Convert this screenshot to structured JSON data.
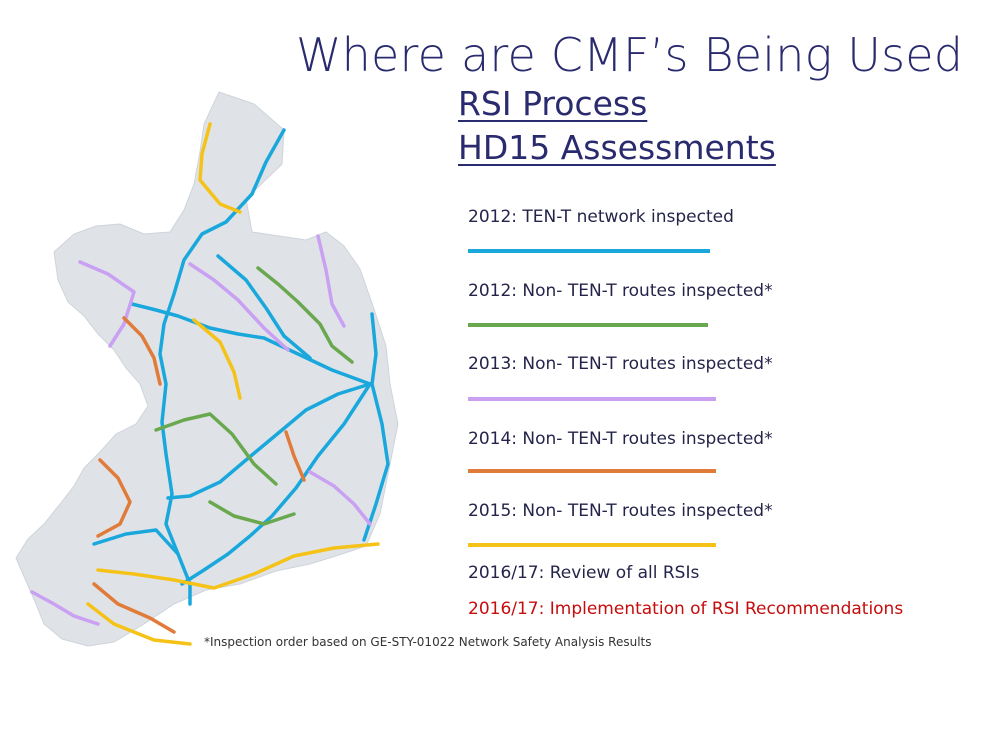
{
  "title": "Where are CMF’s Being Used",
  "subtitles": [
    "RSI Process",
    "HD15 Assessments"
  ],
  "legend": [
    {
      "label": "2012: TEN-T network inspected",
      "color": "#1aa8dc"
    },
    {
      "label": "2012: Non- TEN-T routes inspected*",
      "color": "#6aa84f"
    },
    {
      "label": "2013: Non- TEN-T routes inspected*",
      "color": "#c9a0f2"
    },
    {
      "label": "2014: Non- TEN-T routes inspected*",
      "color": "#e07b39"
    },
    {
      "label": "2015: Non- TEN-T routes inspected*",
      "color": "#f5c218"
    }
  ],
  "notes": [
    {
      "label": "2016/17: Review of all RSIs"
    },
    {
      "label": "2016/17: Implementation of RSI Recommendations",
      "color": "#c60c0c"
    }
  ],
  "footnote": "*Inspection order based on GE-STY-01022 Network Safety Analysis Results"
}
